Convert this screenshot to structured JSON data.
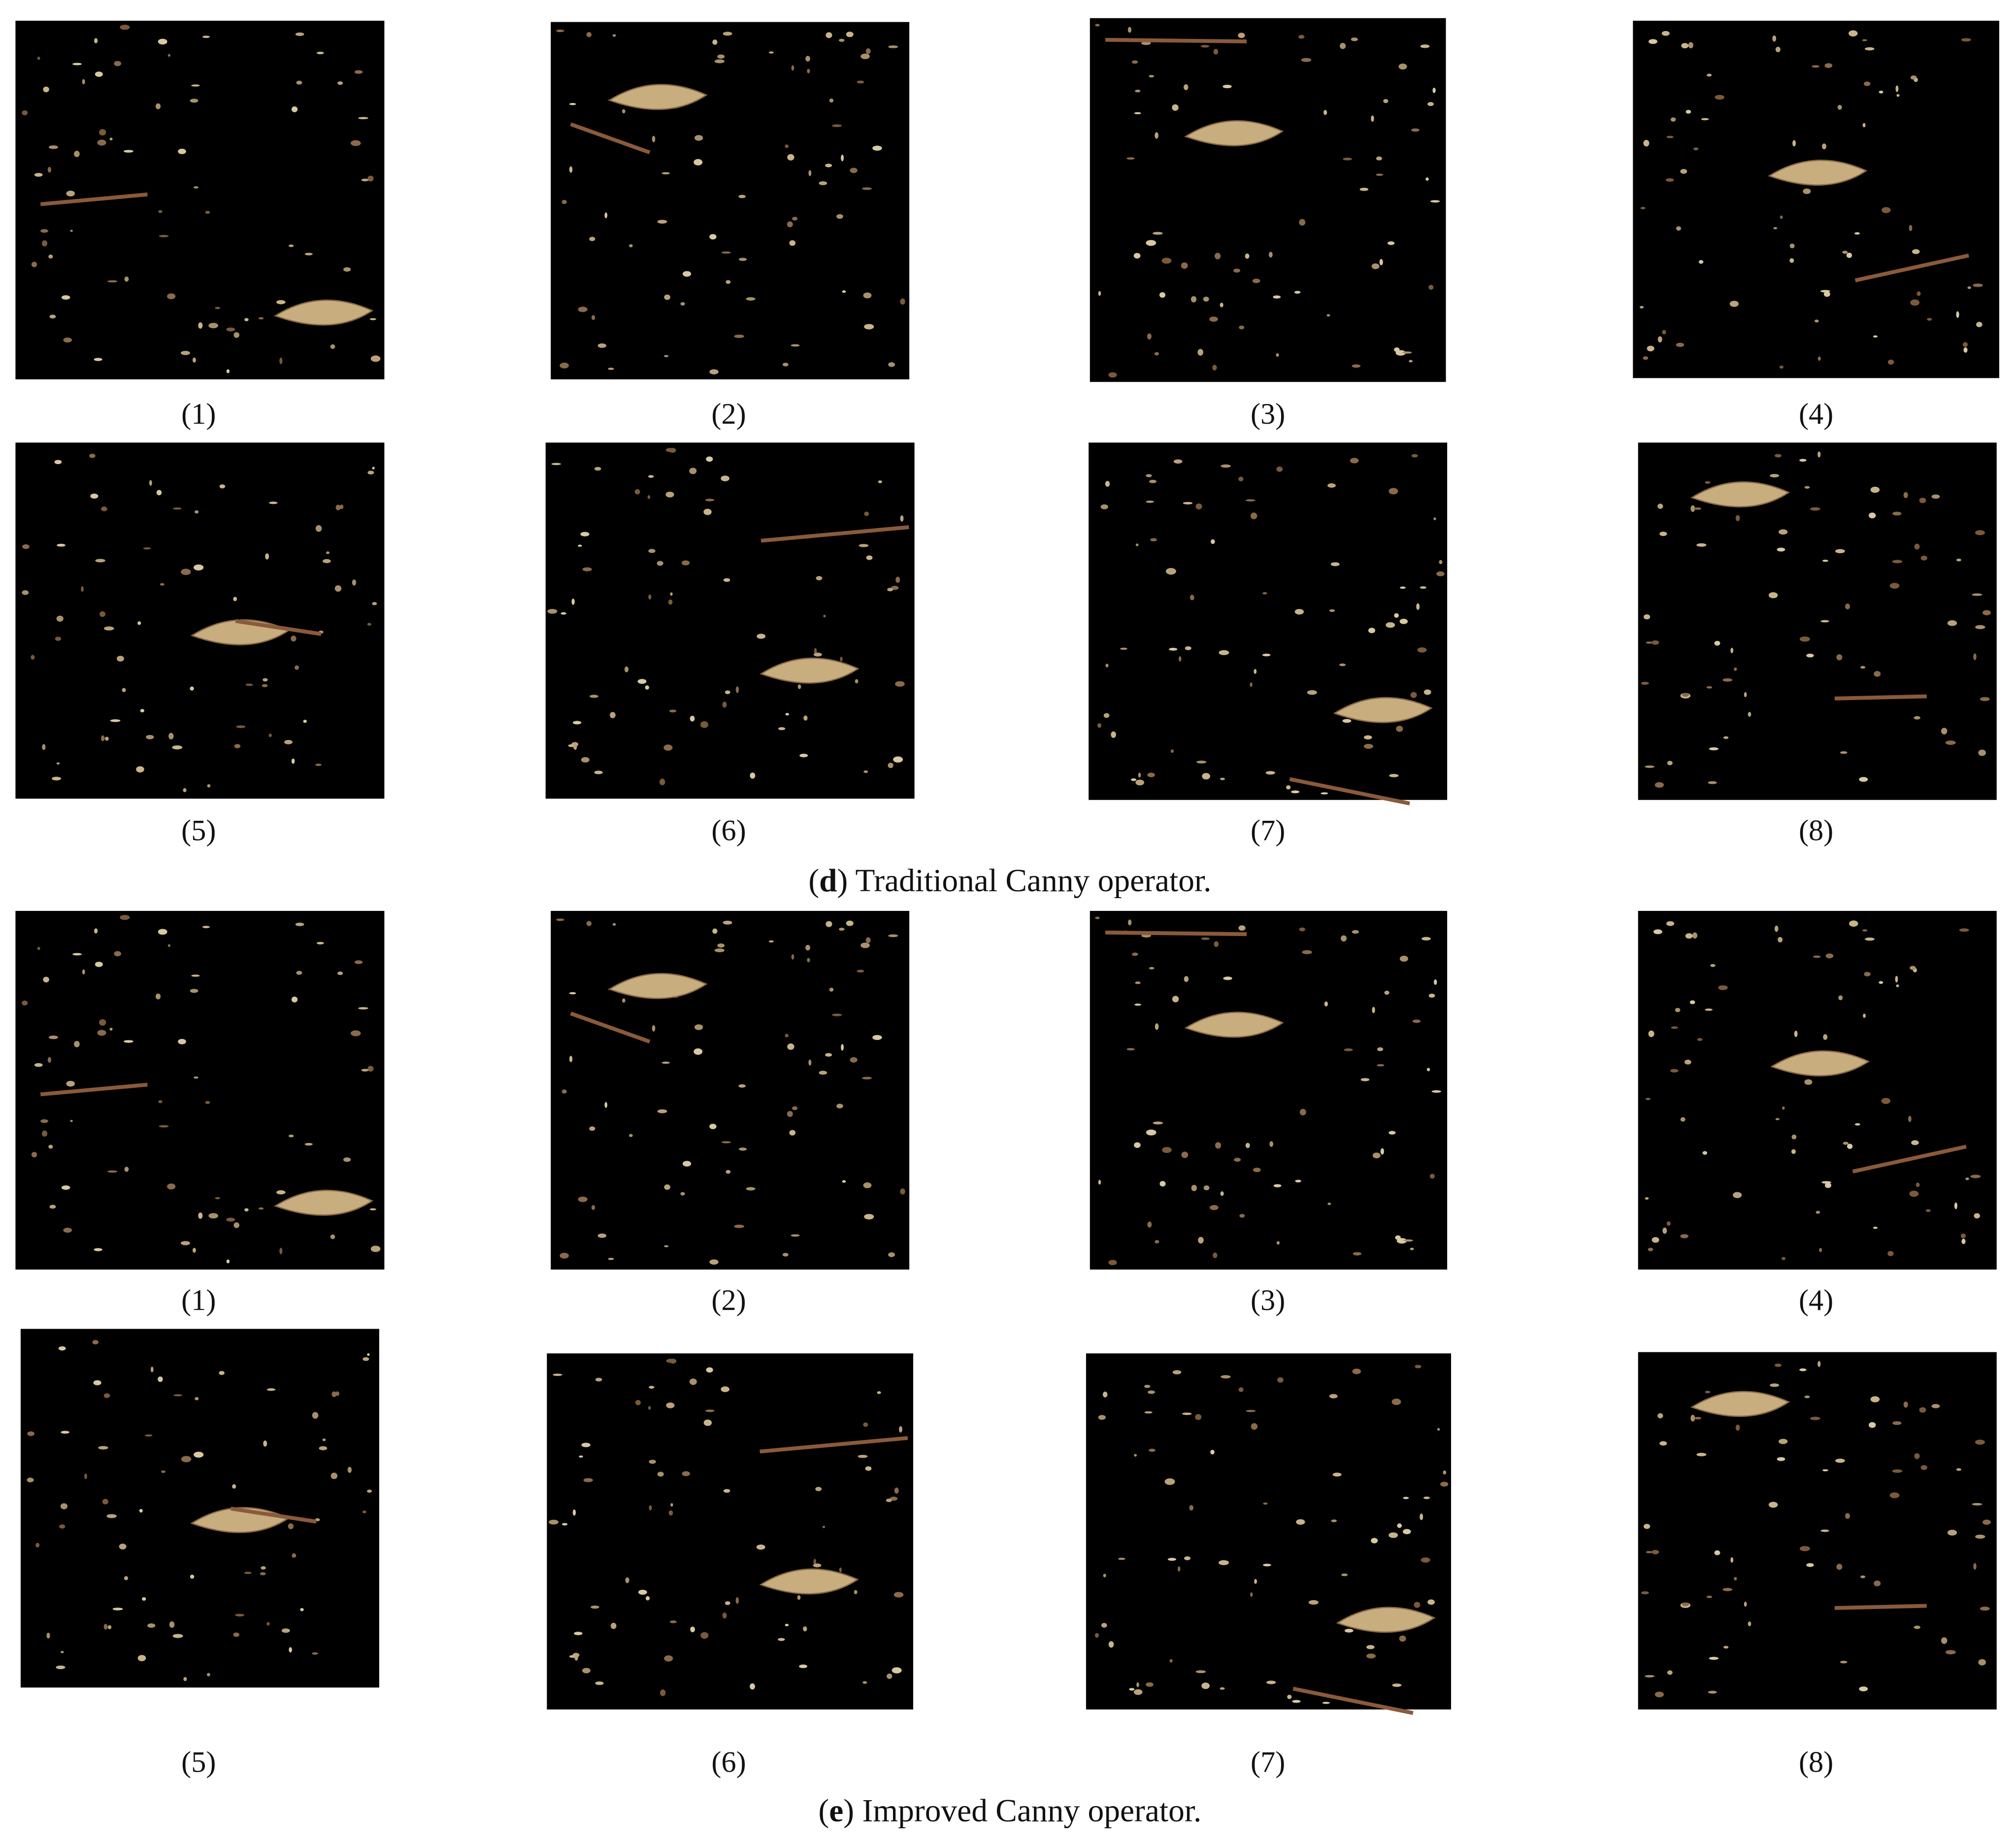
{
  "groups": [
    {
      "labels": [
        "(1)",
        "(2)",
        "(3)",
        "(4)",
        "(5)",
        "(6)",
        "(7)",
        "(8)"
      ],
      "caption": {
        "open": "(",
        "letter": "d",
        "rest": ") Traditional Canny operator."
      }
    },
    {
      "labels": [
        "(1)",
        "(2)",
        "(3)",
        "(4)",
        "(5)",
        "(6)",
        "(7)",
        "(8)"
      ],
      "caption": {
        "open": "(",
        "letter": "e",
        "rest": ") Improved Canny operator."
      }
    }
  ]
}
